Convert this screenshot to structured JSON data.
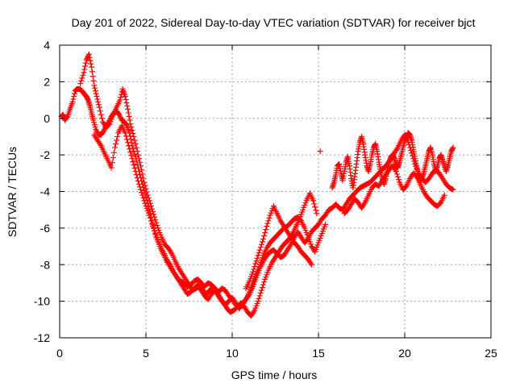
{
  "chart_data": {
    "type": "scatter",
    "title": "Day 201 of 2022, Sidereal Day-to-day VTEC variation (SDTVAR) for receiver bjct",
    "xlabel": "GPS time / hours",
    "ylabel": "SDTVAR / TECUs",
    "xlim": [
      0,
      25
    ],
    "ylim": [
      -12,
      4
    ],
    "xticks": [
      0,
      5,
      10,
      15,
      20,
      25
    ],
    "yticks": [
      -12,
      -10,
      -8,
      -6,
      -4,
      -2,
      0,
      2,
      4
    ],
    "grid": true,
    "marker": "+",
    "series": [
      {
        "name": "SDTVAR",
        "color": "#ff0000",
        "segments": [
          {
            "x": [
              0.1,
              0.2,
              0.3,
              0.45,
              0.6,
              0.75,
              0.9,
              1.0,
              1.15,
              1.3,
              1.45,
              1.55,
              1.65,
              1.75,
              1.85,
              1.95,
              2.1,
              2.25,
              2.4,
              2.55,
              2.7,
              2.85,
              3.0,
              3.15,
              3.3,
              3.45,
              3.6,
              3.75,
              3.9,
              4.05,
              4.2,
              4.4,
              4.6,
              4.8,
              5.0,
              5.2,
              5.4,
              5.6,
              5.8,
              6.0,
              6.2,
              6.4,
              6.6,
              6.8,
              7.0,
              7.2,
              7.4,
              7.6,
              7.8,
              8.0,
              8.2,
              8.4,
              8.6,
              8.8,
              9.0,
              9.2,
              9.4,
              9.6,
              9.8,
              10.0,
              10.2,
              10.4,
              10.6,
              10.8,
              11.0,
              11.2,
              11.4,
              11.6,
              11.8,
              12.0,
              12.2,
              12.4,
              12.6,
              12.8,
              13.0,
              13.2,
              13.4,
              13.6,
              13.8,
              14.0,
              14.2,
              14.4,
              14.6,
              14.8,
              15.0,
              15.2,
              15.4,
              15.6,
              15.8,
              16.0,
              16.2,
              16.4,
              16.6,
              16.8,
              17.0,
              17.2,
              17.4,
              17.6,
              17.8,
              18.0,
              18.2,
              18.4,
              18.6,
              18.8,
              19.0,
              19.2,
              19.4,
              19.6,
              19.8,
              20.0,
              20.2,
              20.4,
              20.6,
              20.8,
              21.0,
              21.2,
              21.4,
              21.6,
              21.8,
              22.0,
              22.2,
              22.4,
              22.6,
              22.8
            ],
            "y": [
              0.1,
              0.2,
              -0.1,
              0.1,
              0.5,
              0.9,
              1.5,
              1.6,
              1.6,
              1.5,
              1.3,
              1.2,
              1.0,
              0.7,
              0.3,
              -0.1,
              -0.6,
              -0.9,
              -0.9,
              -0.7,
              -0.4,
              -0.2,
              0.1,
              0.3,
              0.4,
              0.2,
              -0.1,
              -0.2,
              -0.4,
              -0.8,
              -1.5,
              -2.1,
              -2.9,
              -3.6,
              -4.3,
              -5.0,
              -5.8,
              -6.5,
              -7.0,
              -7.4,
              -7.8,
              -8.1,
              -8.4,
              -8.7,
              -8.9,
              -9.0,
              -9.2,
              -9.1,
              -8.9,
              -8.8,
              -9.0,
              -9.2,
              -9.0,
              -9.1,
              -9.3,
              -9.5,
              -9.3,
              -9.4,
              -9.7,
              -9.9,
              -10.2,
              -10.3,
              -10.1,
              -9.9,
              -9.6,
              -9.2,
              -8.7,
              -8.2,
              -7.8,
              -7.5,
              -7.3,
              -7.2,
              -7.4,
              -7.6,
              -7.5,
              -7.2,
              -6.9,
              -6.5,
              -6.2,
              -6.5,
              -6.8,
              -6.6,
              -6.2,
              -6.0,
              -5.8,
              -5.5,
              -5.3,
              -5.0,
              -4.9,
              -4.7,
              -4.9,
              -5.0,
              -4.7,
              -4.4,
              -4.2,
              -4.0,
              -3.8,
              -3.7,
              -3.6,
              -3.5,
              -3.3,
              -3.1,
              -2.9,
              -2.7,
              -2.5,
              -2.2,
              -1.9,
              -1.6,
              -1.2,
              -0.9,
              -1.3,
              -1.9,
              -2.5,
              -3.0,
              -3.3,
              -3.5,
              -3.3,
              -3.0,
              -2.8,
              -3.0,
              -3.3,
              -3.6,
              -3.8,
              -3.9
            ]
          },
          {
            "x": [
              1.2,
              1.4,
              1.55,
              1.7,
              1.85,
              2.0,
              2.15,
              2.3,
              2.5,
              2.7,
              2.9,
              3.1,
              3.3,
              3.5,
              3.65,
              3.8,
              3.95,
              4.1,
              4.3,
              4.5,
              4.7,
              4.9,
              5.1,
              5.3,
              5.5,
              5.7,
              5.9,
              6.1,
              6.3,
              6.5,
              6.7,
              6.9,
              7.1,
              7.3,
              7.5,
              7.7,
              7.9,
              8.1,
              8.3,
              8.5,
              8.7,
              8.9,
              9.1,
              9.3,
              9.5,
              9.7,
              9.9,
              10.1,
              10.3,
              10.5,
              10.7,
              10.9,
              11.1,
              11.3,
              11.5,
              11.7,
              11.9,
              12.1,
              12.3,
              12.5,
              12.7,
              12.9,
              13.1,
              13.3,
              13.5,
              13.7,
              13.9,
              14.1,
              14.3,
              14.5,
              14.7,
              14.9
            ],
            "y": [
              1.9,
              2.5,
              3.2,
              3.5,
              2.8,
              1.8,
              1.2,
              0.6,
              -0.2,
              -0.5,
              -0.3,
              0.2,
              0.6,
              1.0,
              1.6,
              1.2,
              0.5,
              -0.3,
              -1.0,
              -1.8,
              -2.6,
              -3.5,
              -4.2,
              -4.8,
              -5.4,
              -6.0,
              -6.5,
              -6.9,
              -7.1,
              -7.4,
              -7.8,
              -8.2,
              -8.5,
              -8.8,
              -9.1,
              -9.4,
              -9.3,
              -9.2,
              -9.4,
              -9.6,
              -9.4,
              -9.2,
              -9.5,
              -9.8,
              -10.1,
              -10.4,
              -10.6,
              -10.5,
              -10.3,
              -10.1,
              -10.3,
              -10.6,
              -10.8,
              -10.5,
              -10.0,
              -9.4,
              -8.8,
              -8.3,
              -7.9,
              -7.6,
              -7.3,
              -7.0,
              -6.8,
              -6.6,
              -6.3,
              -5.9,
              -5.5,
              -5.0,
              -4.5,
              -4.1,
              -4.5,
              -5.2
            ]
          },
          {
            "x": [
              2.0,
              2.2,
              2.4,
              2.6,
              2.8,
              3.0,
              3.2,
              3.4,
              3.6,
              3.8,
              4.0,
              4.2,
              4.4,
              4.6,
              4.8,
              5.0,
              5.2,
              5.4,
              5.6,
              5.8,
              6.0,
              6.2,
              6.4,
              6.6,
              6.8,
              7.0,
              7.2,
              7.4,
              7.6,
              7.8,
              8.0,
              8.2,
              8.4,
              8.6,
              8.8,
              9.0,
              9.2,
              9.4,
              9.6,
              9.8,
              10.0,
              10.2,
              10.4,
              10.6,
              10.8,
              11.0,
              11.2,
              11.4,
              11.6,
              11.8,
              12.0,
              12.2,
              12.4,
              12.6,
              12.8,
              13.0,
              13.2,
              13.4,
              13.6,
              13.8,
              14.0,
              14.2,
              14.4,
              14.6,
              14.8,
              15.0,
              15.2,
              15.4
            ],
            "y": [
              -0.9,
              -1.2,
              -1.5,
              -1.9,
              -2.3,
              -2.7,
              -1.6,
              -0.8,
              -0.4,
              -0.8,
              -1.5,
              -2.2,
              -2.9,
              -3.6,
              -4.2,
              -4.8,
              -5.3,
              -5.9,
              -6.4,
              -6.9,
              -7.3,
              -7.7,
              -8.0,
              -8.4,
              -8.7,
              -9.0,
              -9.3,
              -9.6,
              -9.5,
              -9.3,
              -9.1,
              -9.4,
              -9.7,
              -9.9,
              -9.6,
              -9.4,
              -9.7,
              -10.0,
              -10.2,
              -10.0,
              -9.8,
              -10.1,
              -10.4,
              -10.2,
              -9.9,
              -9.5,
              -9.0,
              -8.5,
              -8.0,
              -7.5,
              -7.1,
              -6.8,
              -6.6,
              -6.4,
              -6.2,
              -6.0,
              -5.9,
              -5.7,
              -5.5,
              -5.4,
              -5.6,
              -6.0,
              -6.5,
              -7.0,
              -7.3,
              -6.8,
              -6.3,
              -5.8
            ]
          },
          {
            "x": [
              10.8,
              11.0,
              11.2,
              11.4,
              11.6,
              11.8,
              12.0,
              12.2,
              12.4,
              12.6,
              12.8,
              13.0,
              13.2,
              13.4,
              13.6,
              13.8,
              14.0,
              14.2,
              14.4,
              14.6
            ],
            "y": [
              -9.3,
              -8.9,
              -8.4,
              -7.8,
              -7.2,
              -6.6,
              -5.9,
              -5.3,
              -4.8,
              -5.2,
              -5.6,
              -5.9,
              -6.2,
              -6.5,
              -6.8,
              -7.0,
              -7.3,
              -7.5,
              -7.7,
              -8.0
            ]
          },
          {
            "x": [
              15.8,
              15.9,
              16.0,
              16.1,
              16.2,
              16.3,
              16.4,
              16.5,
              16.6,
              16.7,
              16.8,
              16.9,
              17.0,
              17.1,
              17.2,
              17.3,
              17.4,
              17.5,
              17.6,
              17.7,
              17.8,
              17.9,
              18.0,
              18.1,
              18.2,
              18.3,
              18.4,
              18.5,
              18.6,
              18.7,
              18.8,
              18.9,
              19.0,
              19.1,
              19.2,
              19.3,
              19.4,
              19.5,
              19.6,
              19.7,
              19.8,
              19.9,
              20.0,
              20.1,
              20.2,
              20.3,
              20.4,
              20.5,
              20.6,
              20.7,
              20.8,
              20.9,
              21.0,
              21.1,
              21.2,
              21.3,
              21.4,
              21.5,
              21.6,
              21.7,
              21.8,
              21.9,
              22.0,
              22.1,
              22.2,
              22.3,
              22.4,
              22.5,
              22.6,
              22.7,
              22.8
            ],
            "y": [
              -3.8,
              -3.5,
              -3.1,
              -2.6,
              -2.5,
              -3.0,
              -3.4,
              -2.9,
              -2.4,
              -2.1,
              -2.6,
              -3.3,
              -3.8,
              -3.2,
              -2.5,
              -1.8,
              -1.3,
              -1.0,
              -1.4,
              -2.0,
              -2.6,
              -2.9,
              -2.5,
              -2.0,
              -1.6,
              -1.4,
              -1.8,
              -2.4,
              -2.9,
              -3.3,
              -3.6,
              -3.3,
              -2.8,
              -2.4,
              -2.1,
              -2.0,
              -2.2,
              -2.5,
              -2.7,
              -2.4,
              -2.0,
              -1.6,
              -1.2,
              -1.0,
              -0.8,
              -0.9,
              -1.2,
              -1.7,
              -2.2,
              -2.7,
              -3.1,
              -3.4,
              -3.3,
              -3.0,
              -2.6,
              -2.2,
              -1.8,
              -1.6,
              -2.0,
              -2.5,
              -2.9,
              -2.6,
              -2.2,
              -2.0,
              -2.3,
              -2.6,
              -2.9,
              -2.6,
              -2.2,
              -1.8,
              -1.6
            ]
          },
          {
            "x": [
              16.5,
              16.7,
              16.9,
              17.1,
              17.3,
              17.5,
              17.7,
              17.9,
              18.1,
              18.3,
              18.5,
              18.7,
              18.9,
              19.1,
              19.3,
              19.5,
              19.7,
              19.9,
              20.1,
              20.3,
              20.5,
              20.7,
              20.9,
              21.1,
              21.3,
              21.5,
              21.7,
              21.9,
              22.1,
              22.3
            ],
            "y": [
              -5.2,
              -5.0,
              -4.7,
              -4.4,
              -4.6,
              -4.9,
              -4.6,
              -4.2,
              -3.8,
              -3.6,
              -3.7,
              -3.4,
              -3.1,
              -2.8,
              -2.6,
              -2.9,
              -3.5,
              -3.9,
              -3.7,
              -3.3,
              -3.0,
              -3.2,
              -3.6,
              -4.0,
              -4.3,
              -4.5,
              -4.7,
              -4.8,
              -4.6,
              -4.2
            ]
          },
          {
            "x": [
              15.1
            ],
            "y": [
              -1.8
            ]
          }
        ]
      }
    ]
  }
}
